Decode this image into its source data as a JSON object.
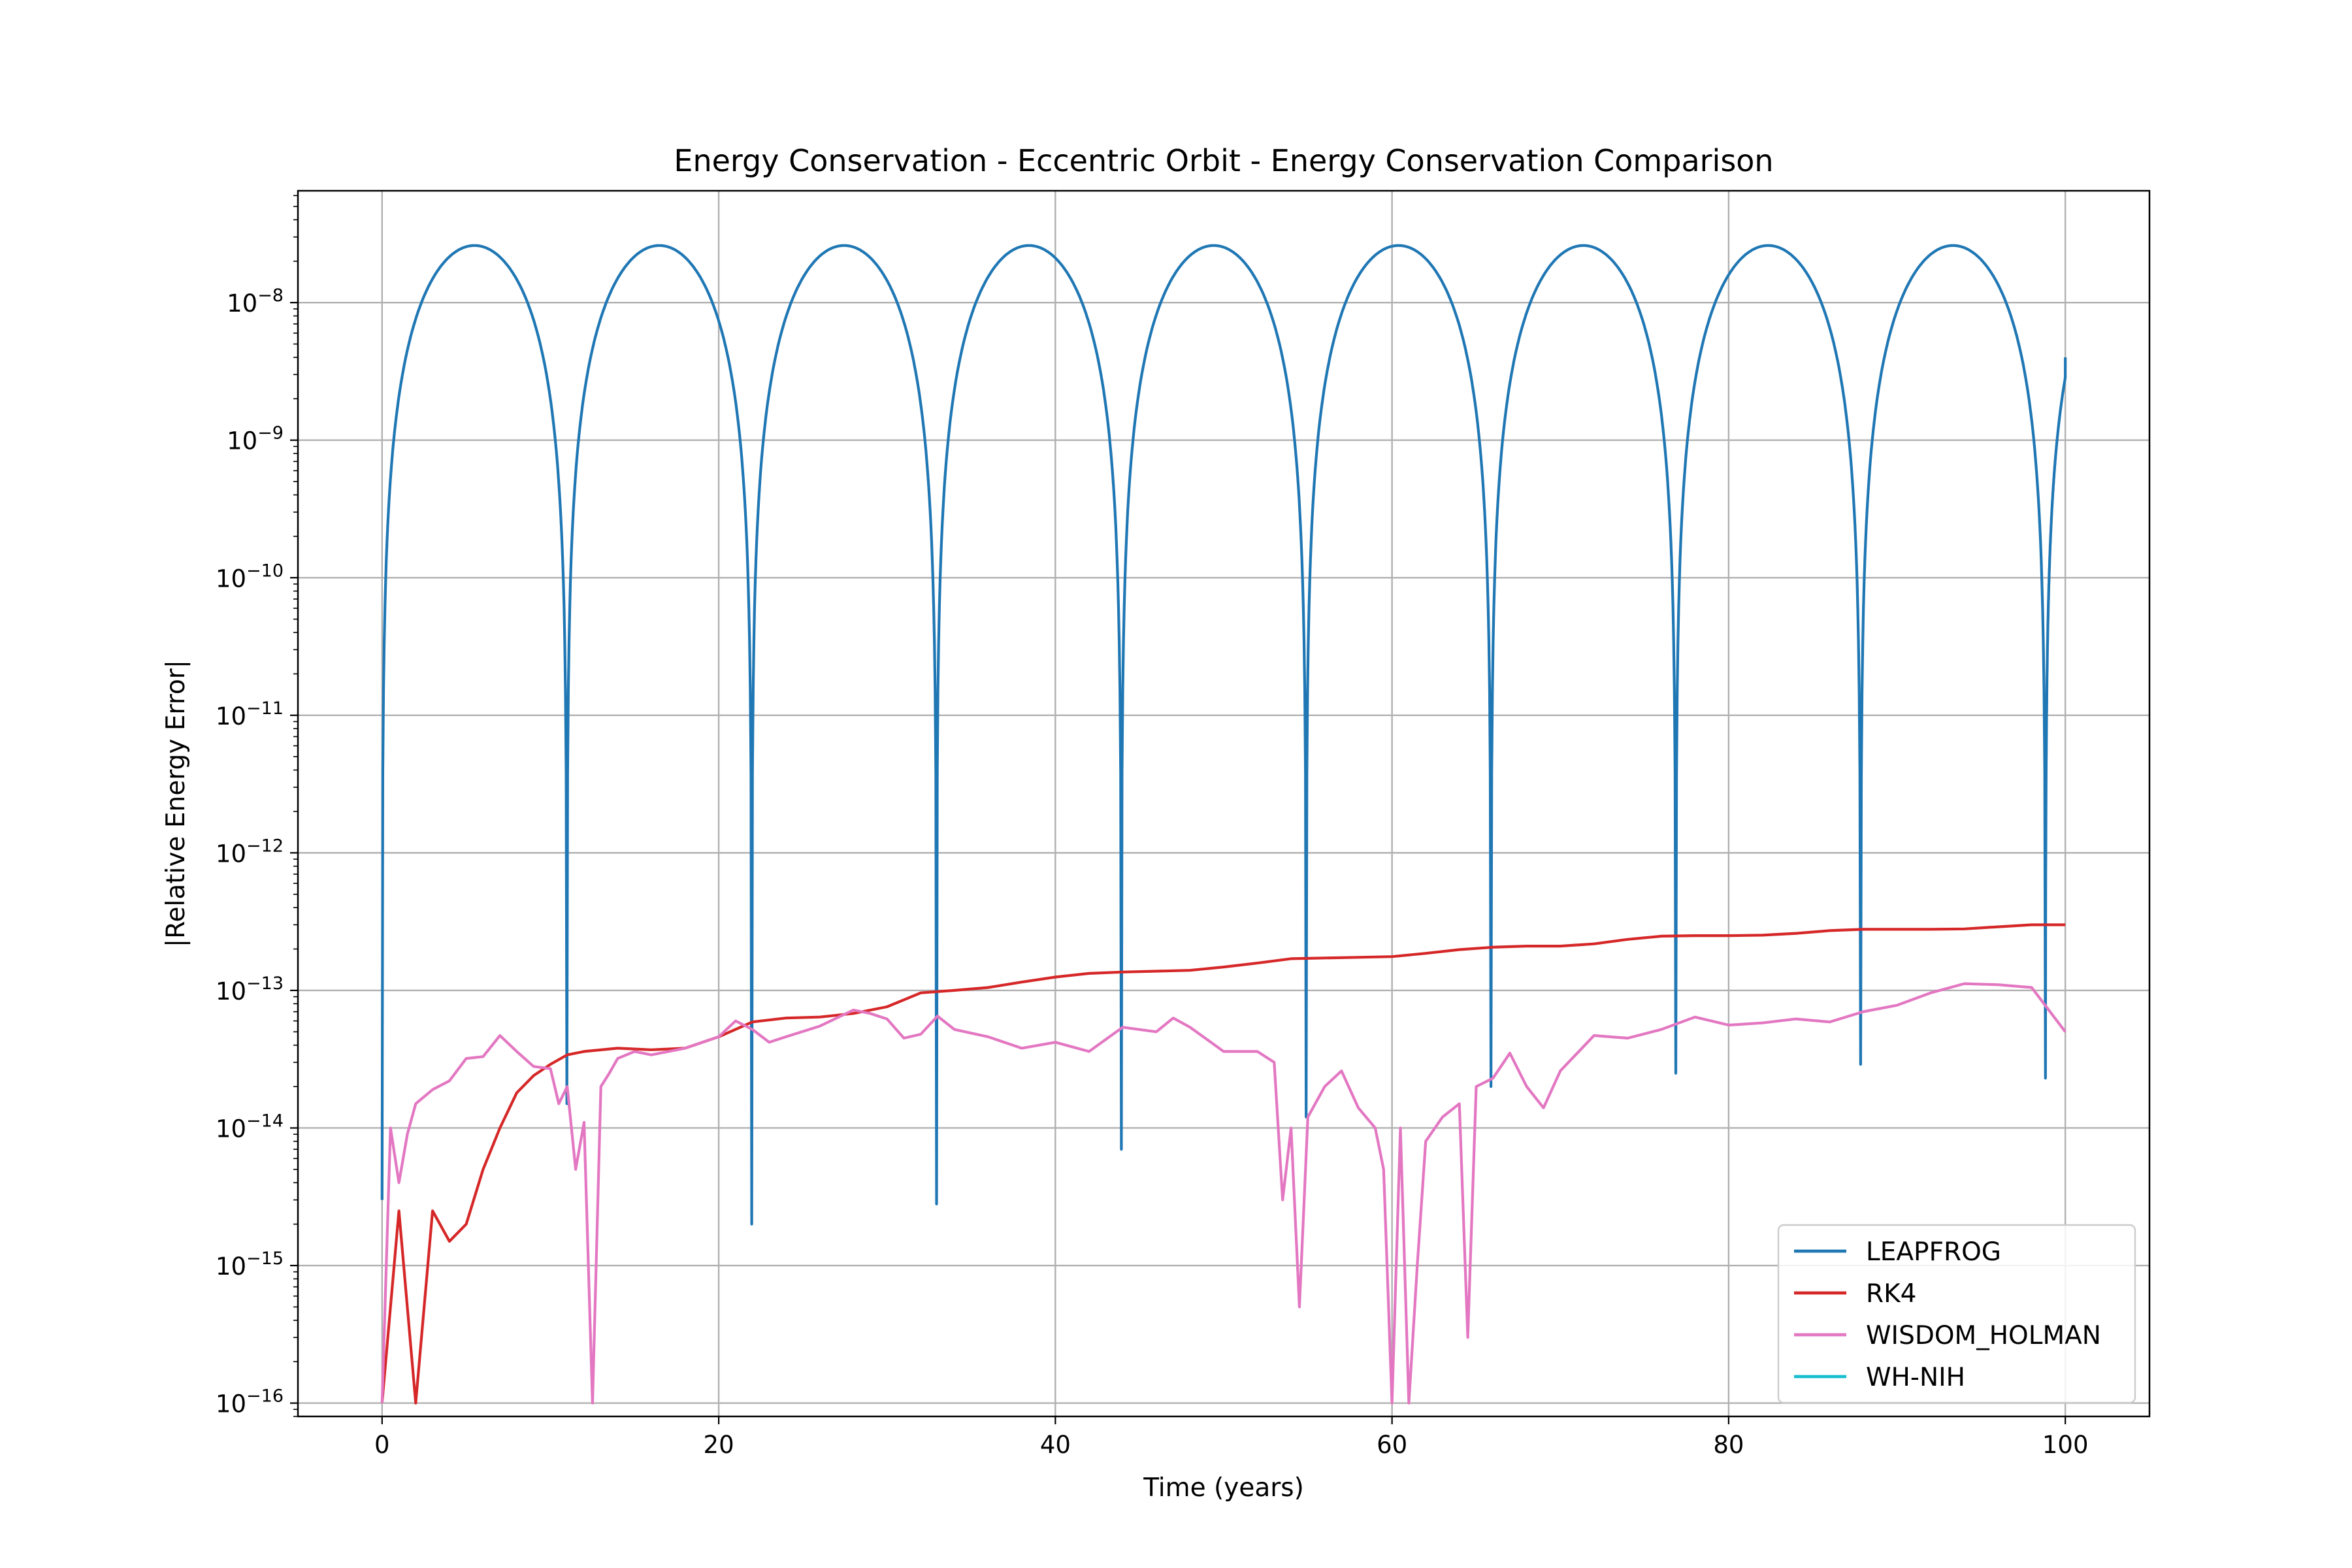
{
  "chart_data": {
    "type": "line",
    "title": "Energy Conservation - Eccentric Orbit - Energy Conservation Comparison",
    "xlabel": "Time (years)",
    "ylabel": "|Relative Energy Error|",
    "xlim": [
      -5,
      105
    ],
    "ylim": [
      8e-17,
      6.5e-08
    ],
    "yscale": "log",
    "grid": true,
    "legend_position": "lower-right",
    "x_ticks": [
      0,
      20,
      40,
      60,
      80,
      100
    ],
    "x_tick_labels": [
      "0",
      "20",
      "40",
      "60",
      "80",
      "100"
    ],
    "y_ticks": [
      1e-16,
      1e-15,
      1e-14,
      1e-13,
      1e-12,
      1e-11,
      1e-10,
      1e-09,
      1e-08
    ],
    "y_tick_labels": [
      {
        "base": "10",
        "exp": "−16"
      },
      {
        "base": "10",
        "exp": "−15"
      },
      {
        "base": "10",
        "exp": "−14"
      },
      {
        "base": "10",
        "exp": "−13"
      },
      {
        "base": "10",
        "exp": "−12"
      },
      {
        "base": "10",
        "exp": "−11"
      },
      {
        "base": "10",
        "exp": "−10"
      },
      {
        "base": "10",
        "exp": "−9"
      },
      {
        "base": "10",
        "exp": "−8"
      }
    ],
    "series": [
      {
        "name": "LEAPFROG",
        "color": "#1f77b4",
        "orbit_period": 10.98,
        "peak_value": 2.6e-08,
        "dip_x": [
          0,
          10.98,
          21.96,
          32.94,
          43.92,
          54.9,
          65.88,
          76.86,
          87.84,
          98.82
        ],
        "dip_values": [
          3e-15,
          1.5e-14,
          2e-15,
          2.8e-15,
          7e-15,
          1.2e-14,
          2e-14,
          2.5e-14,
          2.9e-14,
          2.3e-14
        ],
        "end_x": 100,
        "end_value": 4e-09
      },
      {
        "name": "RK4",
        "color": "#d62728",
        "x": [
          0,
          1,
          2,
          3,
          4,
          5,
          6,
          7,
          8,
          9,
          10,
          11,
          12,
          14,
          16,
          18,
          20,
          22,
          24,
          26,
          28,
          30,
          32,
          34,
          36,
          38,
          40,
          42,
          44,
          46,
          48,
          50,
          52,
          54,
          56,
          58,
          60,
          62,
          64,
          66,
          68,
          70,
          72,
          74,
          76,
          78,
          80,
          82,
          84,
          86,
          88,
          90,
          92,
          94,
          96,
          98,
          100
        ],
        "values": [
          1e-16,
          2.5e-15,
          1e-16,
          2.5e-15,
          1.5e-15,
          2e-15,
          5e-15,
          1e-14,
          1.8e-14,
          2.4e-14,
          2.9e-14,
          3.4e-14,
          3.6e-14,
          3.8e-14,
          3.7e-14,
          3.8e-14,
          4.6e-14,
          5.9e-14,
          6.3e-14,
          6.4e-14,
          6.8e-14,
          7.6e-14,
          9.6e-14,
          1e-13,
          1.05e-13,
          1.15e-13,
          1.25e-13,
          1.33e-13,
          1.36e-13,
          1.38e-13,
          1.4e-13,
          1.48e-13,
          1.58e-13,
          1.7e-13,
          1.72e-13,
          1.74e-13,
          1.76e-13,
          1.86e-13,
          1.98e-13,
          2.06e-13,
          2.1e-13,
          2.1e-13,
          2.18e-13,
          2.35e-13,
          2.48e-13,
          2.5e-13,
          2.5e-13,
          2.52e-13,
          2.6e-13,
          2.72e-13,
          2.78e-13,
          2.78e-13,
          2.78e-13,
          2.8e-13,
          2.9e-13,
          3e-13,
          3e-13
        ]
      },
      {
        "name": "WISDOM_HOLMAN",
        "color": "#e377c2",
        "x": [
          0,
          0.5,
          1,
          1.5,
          2,
          3,
          4,
          5,
          6,
          7,
          8,
          9,
          10,
          10.5,
          11,
          11.5,
          12,
          12.5,
          13,
          13.5,
          14,
          15,
          16,
          18,
          20,
          21,
          22,
          23,
          24,
          26,
          28,
          29,
          30,
          31,
          32,
          33,
          34,
          36,
          38,
          40,
          42,
          44,
          46,
          47,
          48,
          50,
          52,
          53,
          53.5,
          54,
          54.5,
          55,
          56,
          57,
          58,
          59,
          59.5,
          60,
          60.5,
          61,
          61.5,
          62,
          63,
          64,
          64.5,
          65,
          66,
          67,
          68,
          69,
          70,
          72,
          74,
          76,
          78,
          80,
          82,
          84,
          86,
          88,
          90,
          92,
          94,
          96,
          98,
          100
        ],
        "values": [
          1e-16,
          1e-14,
          4e-15,
          9e-15,
          1.5e-14,
          1.9e-14,
          2.2e-14,
          3.2e-14,
          3.3e-14,
          4.7e-14,
          3.6e-14,
          2.8e-14,
          2.7e-14,
          1.5e-14,
          2e-14,
          5e-15,
          1.1e-14,
          1e-16,
          2e-14,
          2.5e-14,
          3.2e-14,
          3.6e-14,
          3.4e-14,
          3.8e-14,
          4.6e-14,
          6e-14,
          5.2e-14,
          4.2e-14,
          4.6e-14,
          5.5e-14,
          7.2e-14,
          6.8e-14,
          6.2e-14,
          4.5e-14,
          4.8e-14,
          6.5e-14,
          5.2e-14,
          4.6e-14,
          3.8e-14,
          4.2e-14,
          3.6e-14,
          5.4e-14,
          5e-14,
          6.3e-14,
          5.4e-14,
          3.6e-14,
          3.6e-14,
          3e-14,
          3e-15,
          1e-14,
          5e-16,
          1.2e-14,
          2e-14,
          2.6e-14,
          1.4e-14,
          1e-14,
          5e-15,
          1e-16,
          1e-14,
          1e-16,
          1e-15,
          8e-15,
          1.2e-14,
          1.5e-14,
          3e-16,
          2e-14,
          2.3e-14,
          3.5e-14,
          2e-14,
          1.4e-14,
          2.6e-14,
          4.7e-14,
          4.5e-14,
          5.2e-14,
          6.4e-14,
          5.6e-14,
          5.8e-14,
          6.2e-14,
          5.9e-14,
          7e-14,
          7.8e-14,
          9.6e-14,
          1.12e-13,
          1.1e-13,
          1.05e-13,
          5e-14
        ]
      },
      {
        "name": "WH-NIH",
        "color": "#17becf",
        "x": [],
        "values": []
      }
    ]
  }
}
